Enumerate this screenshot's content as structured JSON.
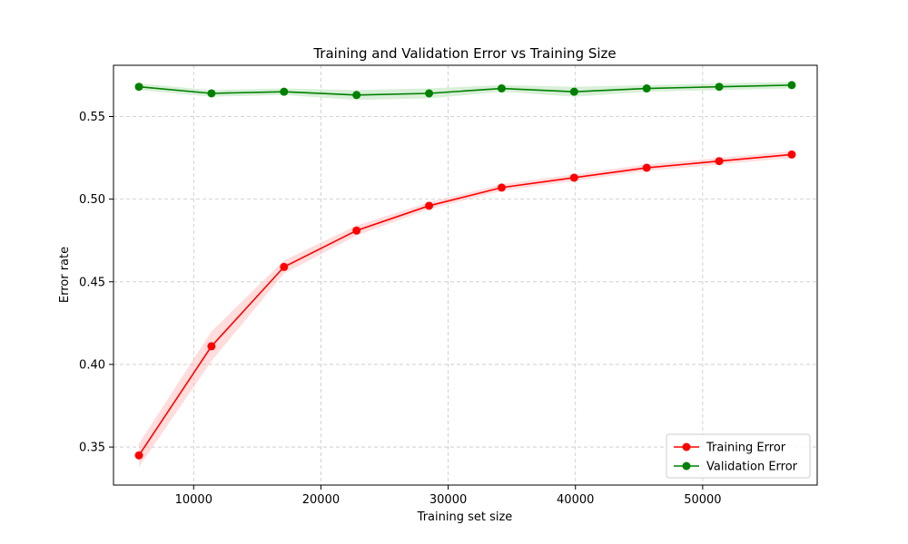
{
  "chart_data": {
    "type": "line",
    "title": "Training and Validation Error vs Training Size",
    "xlabel": "Training set size",
    "ylabel": "Error rate",
    "xlim": [
      3700,
      59000
    ],
    "ylim": [
      0.327,
      0.581
    ],
    "xticks": [
      10000,
      20000,
      30000,
      40000,
      50000
    ],
    "xtick_labels": [
      "10000",
      "20000",
      "30000",
      "40000",
      "50000"
    ],
    "yticks": [
      0.35,
      0.4,
      0.45,
      0.5,
      0.55
    ],
    "ytick_labels": [
      "0.35",
      "0.40",
      "0.45",
      "0.50",
      "0.55"
    ],
    "grid": true,
    "legend_position": "bottom-right",
    "x": [
      5700,
      11400,
      17100,
      22800,
      28500,
      34200,
      39900,
      45600,
      51300,
      57000
    ],
    "series": [
      {
        "name": "Training Error",
        "color": "#ff0000",
        "band_color": "#ffb3b3",
        "values": [
          0.345,
          0.411,
          0.459,
          0.481,
          0.496,
          0.507,
          0.513,
          0.519,
          0.523,
          0.527
        ],
        "lower": [
          0.338,
          0.402,
          0.455,
          0.478,
          0.494,
          0.505,
          0.511,
          0.517,
          0.521,
          0.525
        ],
        "upper": [
          0.352,
          0.42,
          0.463,
          0.484,
          0.498,
          0.509,
          0.515,
          0.521,
          0.525,
          0.529
        ]
      },
      {
        "name": "Validation Error",
        "color": "#008000",
        "band_color": "#a8dca8",
        "values": [
          0.568,
          0.564,
          0.565,
          0.563,
          0.564,
          0.567,
          0.565,
          0.567,
          0.568,
          0.569
        ],
        "lower": [
          0.566,
          0.562,
          0.563,
          0.56,
          0.561,
          0.565,
          0.562,
          0.565,
          0.566,
          0.567
        ],
        "upper": [
          0.57,
          0.566,
          0.567,
          0.566,
          0.567,
          0.569,
          0.568,
          0.569,
          0.57,
          0.571
        ]
      }
    ]
  }
}
